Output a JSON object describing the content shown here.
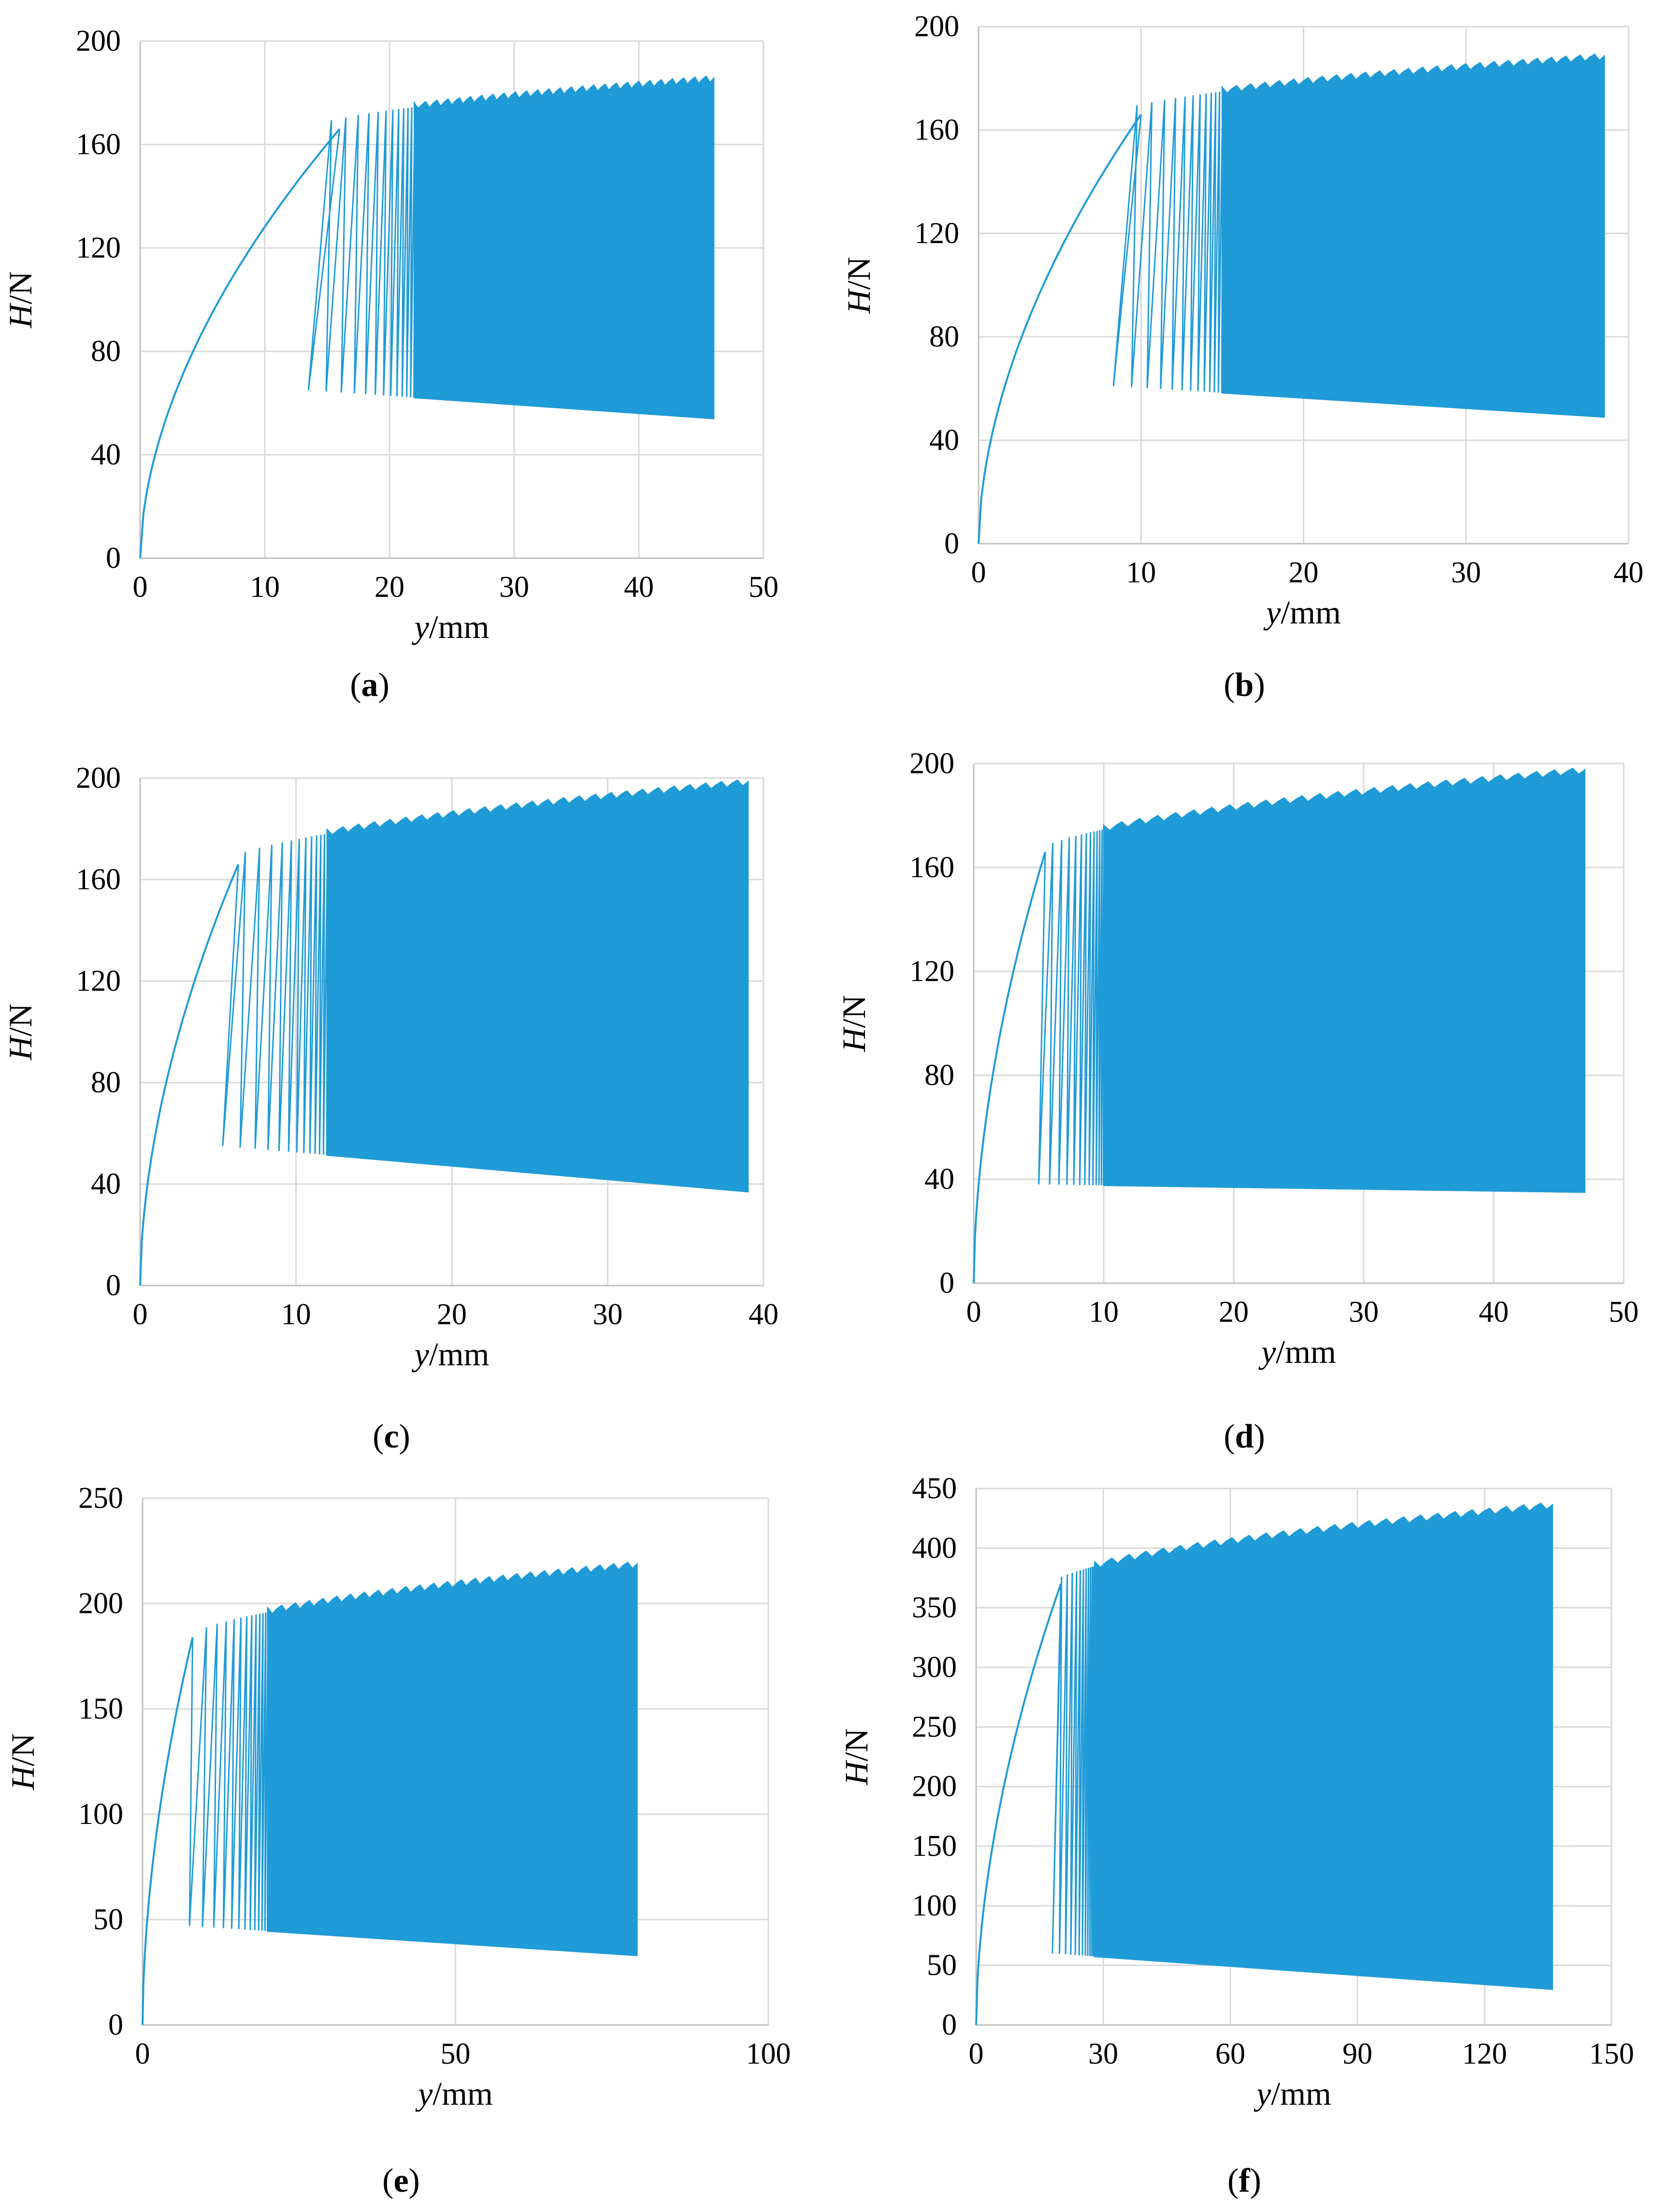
{
  "figure": {
    "colors": {
      "series": "#1f9bd7",
      "grid": "#d9d9d9",
      "axis": "#000000"
    },
    "panels": [
      {
        "caption": "(a)",
        "chart_data": {
          "type": "line",
          "xlabel": "y/mm",
          "ylabel": "H/N",
          "xlim": [
            0,
            50
          ],
          "ylim": [
            0,
            200
          ],
          "xticks": [
            0,
            10,
            20,
            30,
            40,
            50
          ],
          "yticks": [
            0,
            40,
            80,
            120,
            160,
            200
          ],
          "grid": true,
          "series": [
            {
              "x_start": 0,
              "rise_end_x": 16,
              "peak_start": 166,
              "first_trough_x": 13.5,
              "cycle_start_x": 13.5,
              "cycle_end_x": 46,
              "upper_end": 185,
              "lower_start": 65,
              "lower_end": 54,
              "dense_from_x": 22
            }
          ]
        }
      },
      {
        "caption": "(b)",
        "chart_data": {
          "type": "line",
          "xlabel": "y/mm",
          "ylabel": "H/N",
          "xlim": [
            0,
            40
          ],
          "ylim": [
            0,
            200
          ],
          "xticks": [
            0,
            10,
            20,
            30,
            40
          ],
          "yticks": [
            0,
            40,
            80,
            120,
            160,
            200
          ],
          "grid": true,
          "series": [
            {
              "x_start": 0,
              "rise_end_x": 10,
              "peak_start": 166,
              "first_trough_x": 8.3,
              "cycle_start_x": 8.3,
              "cycle_end_x": 38.5,
              "upper_end": 188,
              "lower_start": 61,
              "lower_end": 49,
              "dense_from_x": 15
            }
          ]
        }
      },
      {
        "caption": "(c)",
        "chart_data": {
          "type": "line",
          "xlabel": "y/mm",
          "ylabel": "H/N",
          "xlim": [
            0,
            40
          ],
          "ylim": [
            0,
            200
          ],
          "xticks": [
            0,
            10,
            20,
            30,
            40
          ],
          "yticks": [
            0,
            40,
            80,
            120,
            160,
            200
          ],
          "grid": true,
          "series": [
            {
              "x_start": 0,
              "rise_end_x": 6.3,
              "peak_start": 166,
              "first_trough_x": 5.3,
              "cycle_start_x": 5.3,
              "cycle_end_x": 39,
              "upper_end": 198,
              "lower_start": 55,
              "lower_end": 37,
              "dense_from_x": 12
            }
          ]
        }
      },
      {
        "caption": "(d)",
        "chart_data": {
          "type": "line",
          "xlabel": "y/mm",
          "ylabel": "H/N",
          "xlim": [
            0,
            50
          ],
          "ylim": [
            0,
            200
          ],
          "xticks": [
            0,
            10,
            20,
            30,
            40,
            50
          ],
          "yticks": [
            0,
            40,
            80,
            120,
            160,
            200
          ],
          "grid": true,
          "series": [
            {
              "x_start": 0,
              "rise_end_x": 5.5,
              "peak_start": 166,
              "first_trough_x": 5,
              "cycle_start_x": 5,
              "cycle_end_x": 47,
              "upper_end": 197,
              "lower_start": 38,
              "lower_end": 35,
              "dense_from_x": 10
            }
          ]
        }
      },
      {
        "caption": "(e)",
        "chart_data": {
          "type": "line",
          "xlabel": "y/mm",
          "ylabel": "H/N",
          "xlim": [
            0,
            100
          ],
          "ylim": [
            0,
            250
          ],
          "xticks": [
            0,
            50,
            100
          ],
          "yticks": [
            0,
            50,
            100,
            150,
            200,
            250
          ],
          "grid": true,
          "series": [
            {
              "x_start": 0,
              "rise_end_x": 8,
              "peak_start": 184,
              "first_trough_x": 7.5,
              "cycle_start_x": 7.5,
              "cycle_end_x": 79,
              "upper_end": 218,
              "lower_start": 47,
              "lower_end": 33,
              "dense_from_x": 20
            }
          ]
        }
      },
      {
        "caption": "(f)",
        "chart_data": {
          "type": "line",
          "xlabel": "y/mm",
          "ylabel": "H/N",
          "xlim": [
            0,
            150
          ],
          "ylim": [
            0,
            450
          ],
          "xticks": [
            0,
            30,
            60,
            90,
            120,
            150
          ],
          "yticks": [
            0,
            50,
            100,
            150,
            200,
            250,
            300,
            350,
            400,
            450
          ],
          "grid": true,
          "series": [
            {
              "x_start": 0,
              "rise_end_x": 20,
              "peak_start": 370,
              "first_trough_x": 18,
              "cycle_start_x": 18,
              "cycle_end_x": 136,
              "upper_end": 435,
              "lower_start": 60,
              "lower_end": 30,
              "dense_from_x": 28
            }
          ]
        }
      }
    ]
  }
}
